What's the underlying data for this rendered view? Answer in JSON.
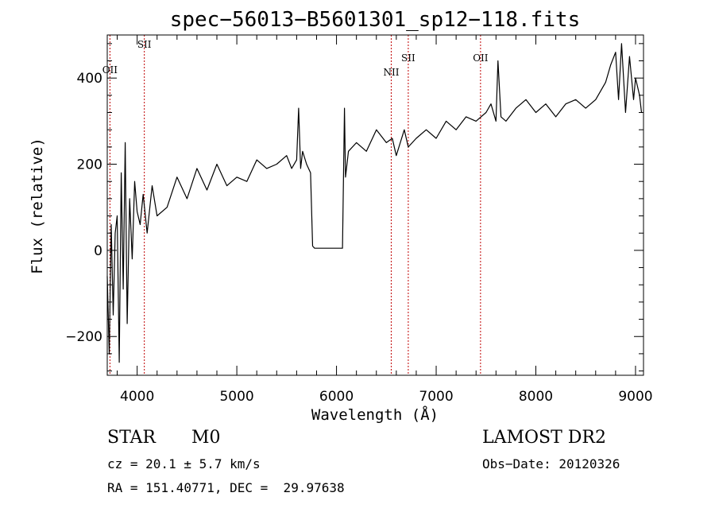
{
  "chart_data": {
    "type": "line",
    "title": "spec−56013−B5601301_sp12−118.fits",
    "xlabel": "Wavelength (Å)",
    "ylabel": "Flux (relative)",
    "xlim": [
      3700,
      9080
    ],
    "ylim": [
      -290,
      500
    ],
    "x_ticks": [
      4000,
      5000,
      6000,
      7000,
      8000,
      9000
    ],
    "x_tick_labels": [
      "4000",
      "5000",
      "6000",
      "7000",
      "8000",
      "9000"
    ],
    "y_ticks": [
      -200,
      0,
      200,
      400
    ],
    "y_tick_labels": [
      "−200",
      "0",
      "200",
      "400"
    ],
    "grid": false,
    "series": [
      {
        "color": "#000000",
        "x": [
          3700,
          3720,
          3740,
          3760,
          3780,
          3800,
          3820,
          3840,
          3860,
          3880,
          3900,
          3925,
          3950,
          3975,
          4000,
          4030,
          4060,
          4100,
          4150,
          4200,
          4300,
          4400,
          4500,
          4600,
          4700,
          4800,
          4900,
          5000,
          5100,
          5200,
          5300,
          5400,
          5500,
          5550,
          5600,
          5620,
          5640,
          5660,
          5700,
          5740,
          5760,
          5780,
          5850,
          6000,
          6060,
          6080,
          6090,
          6120,
          6200,
          6300,
          6400,
          6500,
          6560,
          6600,
          6680,
          6720,
          6800,
          6900,
          7000,
          7100,
          7200,
          7300,
          7400,
          7450,
          7500,
          7550,
          7600,
          7620,
          7650,
          7700,
          7800,
          7900,
          8000,
          8100,
          8200,
          8300,
          8400,
          8500,
          8600,
          8700,
          8750,
          8800,
          8830,
          8860,
          8900,
          8940,
          8980,
          9000,
          9040,
          9060
        ],
        "y": [
          -60,
          -240,
          60,
          -150,
          40,
          80,
          -260,
          180,
          -90,
          250,
          -170,
          120,
          -20,
          160,
          90,
          60,
          130,
          40,
          150,
          80,
          100,
          170,
          120,
          190,
          140,
          200,
          150,
          170,
          160,
          210,
          190,
          200,
          220,
          190,
          210,
          330,
          190,
          230,
          200,
          180,
          10,
          5,
          5,
          5,
          5,
          330,
          170,
          230,
          250,
          230,
          280,
          250,
          260,
          220,
          280,
          240,
          260,
          280,
          260,
          300,
          280,
          310,
          300,
          310,
          320,
          340,
          300,
          440,
          310,
          300,
          330,
          350,
          320,
          340,
          310,
          340,
          350,
          330,
          350,
          390,
          430,
          460,
          350,
          480,
          320,
          450,
          350,
          400,
          360,
          320
        ]
      }
    ],
    "line_markers": [
      {
        "label": "OII",
        "x": 3727
      },
      {
        "label": "SII",
        "x": 4072
      },
      {
        "label": "NII",
        "x": 6549
      },
      {
        "label": "SII",
        "x": 6720
      },
      {
        "label": "OII",
        "x": 7445
      }
    ],
    "marker_color": "#c00000",
    "annotations": {
      "object_class": "STAR",
      "subclass": "M0",
      "survey": "LAMOST DR2",
      "redshift": "cz = 20.1 ± 5.7 km/s",
      "obs_date": "Obs−Date: 20120326",
      "coordinates": "RA = 151.40771, DEC =  29.97638"
    }
  }
}
